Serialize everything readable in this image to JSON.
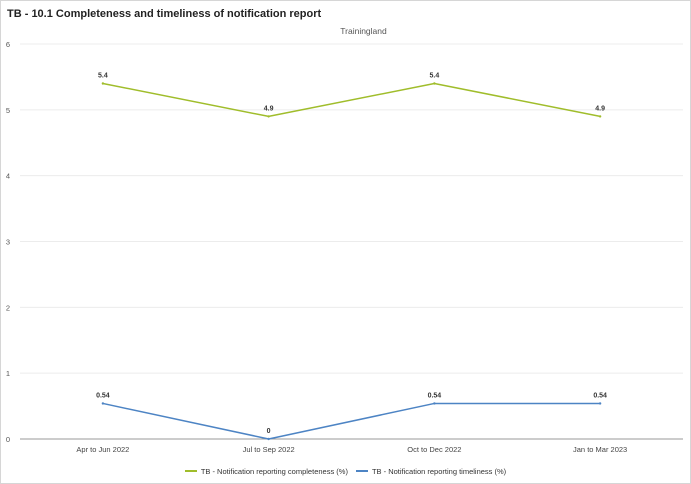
{
  "title": "TB - 10.1 Completeness and timeliness of notification report",
  "chart_data": {
    "type": "line",
    "subtitle": "Trainingland",
    "categories": [
      "Apr to Jun 2022",
      "Jul to Sep 2022",
      "Oct to Dec 2022",
      "Jan to Mar 2023"
    ],
    "series": [
      {
        "name": "TB - Notification reporting completeness (%)",
        "values": [
          5.4,
          4.9,
          5.4,
          4.9
        ],
        "labels": [
          "5.4",
          "4.9",
          "5.4",
          "4.9"
        ],
        "color": "#a0bd2b"
      },
      {
        "name": "TB - Notification reporting timeliness (%)",
        "values": [
          0.54,
          0,
          0.54,
          0.54
        ],
        "labels": [
          "0.54",
          "0",
          "0.54",
          "0.54"
        ],
        "color": "#4d84c4"
      }
    ],
    "yticks": [
      "0",
      "1",
      "2",
      "3",
      "4",
      "5",
      "6"
    ],
    "ylim": [
      0,
      6
    ],
    "grid": true,
    "legend_position": "bottom"
  }
}
